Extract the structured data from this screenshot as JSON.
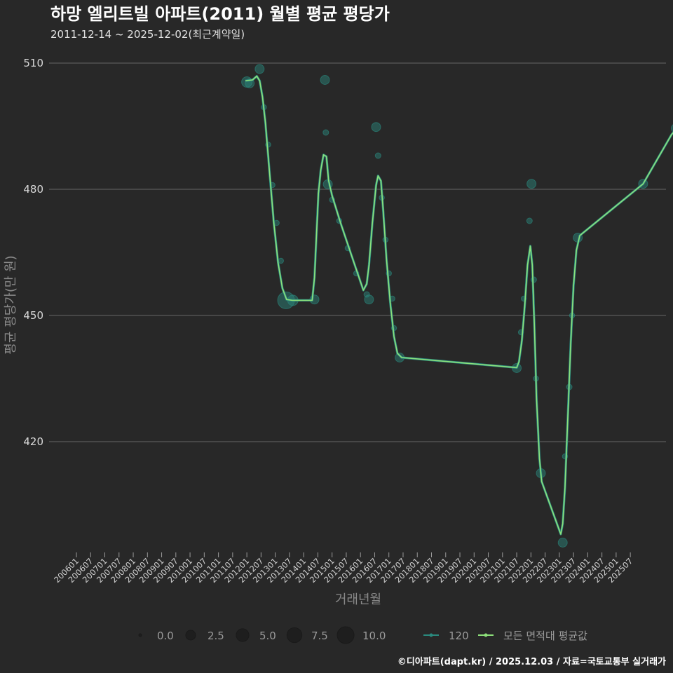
{
  "chart_data": {
    "type": "line",
    "title": "하망 엘리트빌 아파트(2011) 월별 평균 평당가",
    "subtitle": "2011-12-14 ~ 2025-12-02(최근계약일)",
    "xlabel": "거래년월",
    "ylabel": "평균 평당가(만 원)",
    "ylim": [
      393,
      514
    ],
    "yticks": [
      420,
      450,
      480,
      510
    ],
    "x_tick_labels": [
      "200601",
      "200607",
      "200701",
      "200707",
      "200801",
      "200807",
      "200901",
      "200907",
      "201001",
      "201007",
      "201101",
      "201107",
      "201201",
      "201207",
      "201301",
      "201307",
      "201401",
      "201407",
      "201501",
      "201507",
      "201601",
      "201607",
      "201701",
      "201707",
      "201801",
      "201807",
      "201901",
      "201907",
      "202001",
      "202007",
      "202101",
      "202107",
      "202201",
      "202207",
      "202301",
      "202307",
      "202401",
      "202407",
      "202501",
      "202507"
    ],
    "series": [
      {
        "name": "120",
        "color": "#2a8a7e",
        "points": [
          {
            "t": 2012.0,
            "y": 505.5,
            "n": 3
          },
          {
            "t": 2012.1,
            "y": 505.2,
            "n": 2
          },
          {
            "t": 2012.45,
            "y": 508.6,
            "n": 2
          },
          {
            "t": 2012.6,
            "y": 499.5,
            "n": 0.3
          },
          {
            "t": 2012.75,
            "y": 490.6,
            "n": 0.3
          },
          {
            "t": 2012.9,
            "y": 481.0,
            "n": 0.3
          },
          {
            "t": 2013.05,
            "y": 472.0,
            "n": 0.3
          },
          {
            "t": 2013.2,
            "y": 463.0,
            "n": 0.3
          },
          {
            "t": 2013.38,
            "y": 453.6,
            "n": 10
          },
          {
            "t": 2013.62,
            "y": 453.6,
            "n": 3
          },
          {
            "t": 2014.38,
            "y": 453.8,
            "n": 2
          },
          {
            "t": 2014.75,
            "y": 506.0,
            "n": 2
          },
          {
            "t": 2014.78,
            "y": 493.5,
            "n": 0.4
          },
          {
            "t": 2014.85,
            "y": 481.2,
            "n": 2
          },
          {
            "t": 2015.0,
            "y": 477.5,
            "n": 0.3
          },
          {
            "t": 2015.25,
            "y": 472.5,
            "n": 0.3
          },
          {
            "t": 2015.55,
            "y": 466.0,
            "n": 0.3
          },
          {
            "t": 2015.85,
            "y": 460.0,
            "n": 0.3
          },
          {
            "t": 2016.22,
            "y": 455.0,
            "n": 0.4
          },
          {
            "t": 2016.3,
            "y": 453.8,
            "n": 2
          },
          {
            "t": 2016.55,
            "y": 494.8,
            "n": 2
          },
          {
            "t": 2016.62,
            "y": 488.0,
            "n": 0.4
          },
          {
            "t": 2016.75,
            "y": 478.0,
            "n": 0.3
          },
          {
            "t": 2016.88,
            "y": 468.0,
            "n": 0.3
          },
          {
            "t": 2017.0,
            "y": 460.0,
            "n": 0.3
          },
          {
            "t": 2017.12,
            "y": 454.0,
            "n": 0.3
          },
          {
            "t": 2017.18,
            "y": 447.0,
            "n": 0.3
          },
          {
            "t": 2017.38,
            "y": 440.0,
            "n": 2
          },
          {
            "t": 2021.5,
            "y": 437.5,
            "n": 2
          },
          {
            "t": 2021.65,
            "y": 446.0,
            "n": 0.3
          },
          {
            "t": 2021.75,
            "y": 454.0,
            "n": 0.3
          },
          {
            "t": 2021.95,
            "y": 472.5,
            "n": 0.4
          },
          {
            "t": 2022.02,
            "y": 481.3,
            "n": 2
          },
          {
            "t": 2022.1,
            "y": 458.5,
            "n": 0.4
          },
          {
            "t": 2022.18,
            "y": 435.0,
            "n": 0.3
          },
          {
            "t": 2022.35,
            "y": 412.5,
            "n": 2
          },
          {
            "t": 2023.12,
            "y": 396.0,
            "n": 2
          },
          {
            "t": 2023.2,
            "y": 416.5,
            "n": 0.3
          },
          {
            "t": 2023.35,
            "y": 433.0,
            "n": 0.4
          },
          {
            "t": 2023.45,
            "y": 450.0,
            "n": 0.3
          },
          {
            "t": 2023.65,
            "y": 468.5,
            "n": 2
          },
          {
            "t": 2025.95,
            "y": 481.3,
            "n": 2
          },
          {
            "t": 2027.1,
            "y": 494.5,
            "n": 2
          }
        ]
      },
      {
        "name": "모든 면적대 평균값",
        "color": "#8de07a",
        "line": [
          {
            "t": 2011.95,
            "y": 505.8
          },
          {
            "t": 2012.2,
            "y": 506.0
          },
          {
            "t": 2012.35,
            "y": 506.9
          },
          {
            "t": 2012.45,
            "y": 505.8
          },
          {
            "t": 2012.55,
            "y": 502.0
          },
          {
            "t": 2012.65,
            "y": 496.0
          },
          {
            "t": 2012.8,
            "y": 484.0
          },
          {
            "t": 2012.95,
            "y": 472.0
          },
          {
            "t": 2013.1,
            "y": 462.5
          },
          {
            "t": 2013.25,
            "y": 456.5
          },
          {
            "t": 2013.4,
            "y": 453.8
          },
          {
            "t": 2013.6,
            "y": 453.6
          },
          {
            "t": 2014.3,
            "y": 453.6
          },
          {
            "t": 2014.38,
            "y": 459.0
          },
          {
            "t": 2014.45,
            "y": 469.0
          },
          {
            "t": 2014.52,
            "y": 479.0
          },
          {
            "t": 2014.6,
            "y": 484.5
          },
          {
            "t": 2014.7,
            "y": 488.2
          },
          {
            "t": 2014.8,
            "y": 487.8
          },
          {
            "t": 2014.88,
            "y": 482.0
          },
          {
            "t": 2015.0,
            "y": 478.5
          },
          {
            "t": 2015.3,
            "y": 472.0
          },
          {
            "t": 2015.7,
            "y": 464.0
          },
          {
            "t": 2016.1,
            "y": 456.0
          },
          {
            "t": 2016.22,
            "y": 457.5
          },
          {
            "t": 2016.3,
            "y": 462.0
          },
          {
            "t": 2016.42,
            "y": 472.0
          },
          {
            "t": 2016.55,
            "y": 481.0
          },
          {
            "t": 2016.62,
            "y": 483.2
          },
          {
            "t": 2016.72,
            "y": 482.0
          },
          {
            "t": 2016.8,
            "y": 475.0
          },
          {
            "t": 2016.92,
            "y": 463.0
          },
          {
            "t": 2017.05,
            "y": 453.0
          },
          {
            "t": 2017.18,
            "y": 445.0
          },
          {
            "t": 2017.3,
            "y": 441.0
          },
          {
            "t": 2017.45,
            "y": 440.0
          },
          {
            "t": 2021.5,
            "y": 437.6
          },
          {
            "t": 2021.58,
            "y": 439.0
          },
          {
            "t": 2021.68,
            "y": 444.0
          },
          {
            "t": 2021.78,
            "y": 452.0
          },
          {
            "t": 2021.88,
            "y": 462.0
          },
          {
            "t": 2021.98,
            "y": 466.5
          },
          {
            "t": 2022.05,
            "y": 462.0
          },
          {
            "t": 2022.12,
            "y": 448.0
          },
          {
            "t": 2022.2,
            "y": 430.0
          },
          {
            "t": 2022.3,
            "y": 416.0
          },
          {
            "t": 2022.38,
            "y": 410.5
          },
          {
            "t": 2023.05,
            "y": 398.0
          },
          {
            "t": 2023.12,
            "y": 400.5
          },
          {
            "t": 2023.2,
            "y": 409.0
          },
          {
            "t": 2023.3,
            "y": 426.0
          },
          {
            "t": 2023.4,
            "y": 443.0
          },
          {
            "t": 2023.5,
            "y": 457.0
          },
          {
            "t": 2023.6,
            "y": 465.5
          },
          {
            "t": 2023.72,
            "y": 469.0
          },
          {
            "t": 2025.95,
            "y": 481.3
          },
          {
            "t": 2026.95,
            "y": 493.0
          },
          {
            "t": 2027.12,
            "y": 494.3
          }
        ]
      }
    ],
    "size_legend": {
      "values": [
        0,
        2.5,
        5,
        7.5,
        10
      ],
      "labels": [
        "0.0",
        "2.5",
        "5.0",
        "7.5",
        "10.0"
      ]
    },
    "series_legend": [
      "120",
      "모든 면적대 평균값"
    ],
    "grid": true
  },
  "caption": "©디아파트(dapt.kr) / 2025.12.03 / 자료=국토교통부 실거래가"
}
